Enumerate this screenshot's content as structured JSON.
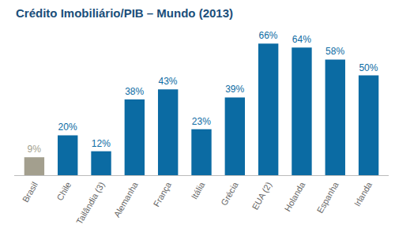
{
  "chart_data": {
    "type": "bar",
    "title": "Crédito Imobiliário/PIB – Mundo (2013)",
    "categories": [
      "Brasil",
      "Chile",
      "Tailândia (3)",
      "Alemanha",
      "França",
      "Itália",
      "Grécia",
      "EUA (2)",
      "Holanda",
      "Espanha",
      "Irlanda"
    ],
    "values": [
      9,
      20,
      12,
      38,
      43,
      23,
      39,
      66,
      64,
      58,
      50
    ],
    "value_labels": [
      "9%",
      "20%",
      "12%",
      "38%",
      "43%",
      "23%",
      "39%",
      "66%",
      "64%",
      "58%",
      "50%"
    ],
    "colors": [
      "#a39f8e",
      "#0b6ba3",
      "#0b6ba3",
      "#0b6ba3",
      "#0b6ba3",
      "#0b6ba3",
      "#0b6ba3",
      "#0b6ba3",
      "#0b6ba3",
      "#0b6ba3",
      "#0b6ba3"
    ],
    "ylim": [
      0,
      72
    ],
    "data_labels": true,
    "tick_labels": "x",
    "grid": false
  }
}
